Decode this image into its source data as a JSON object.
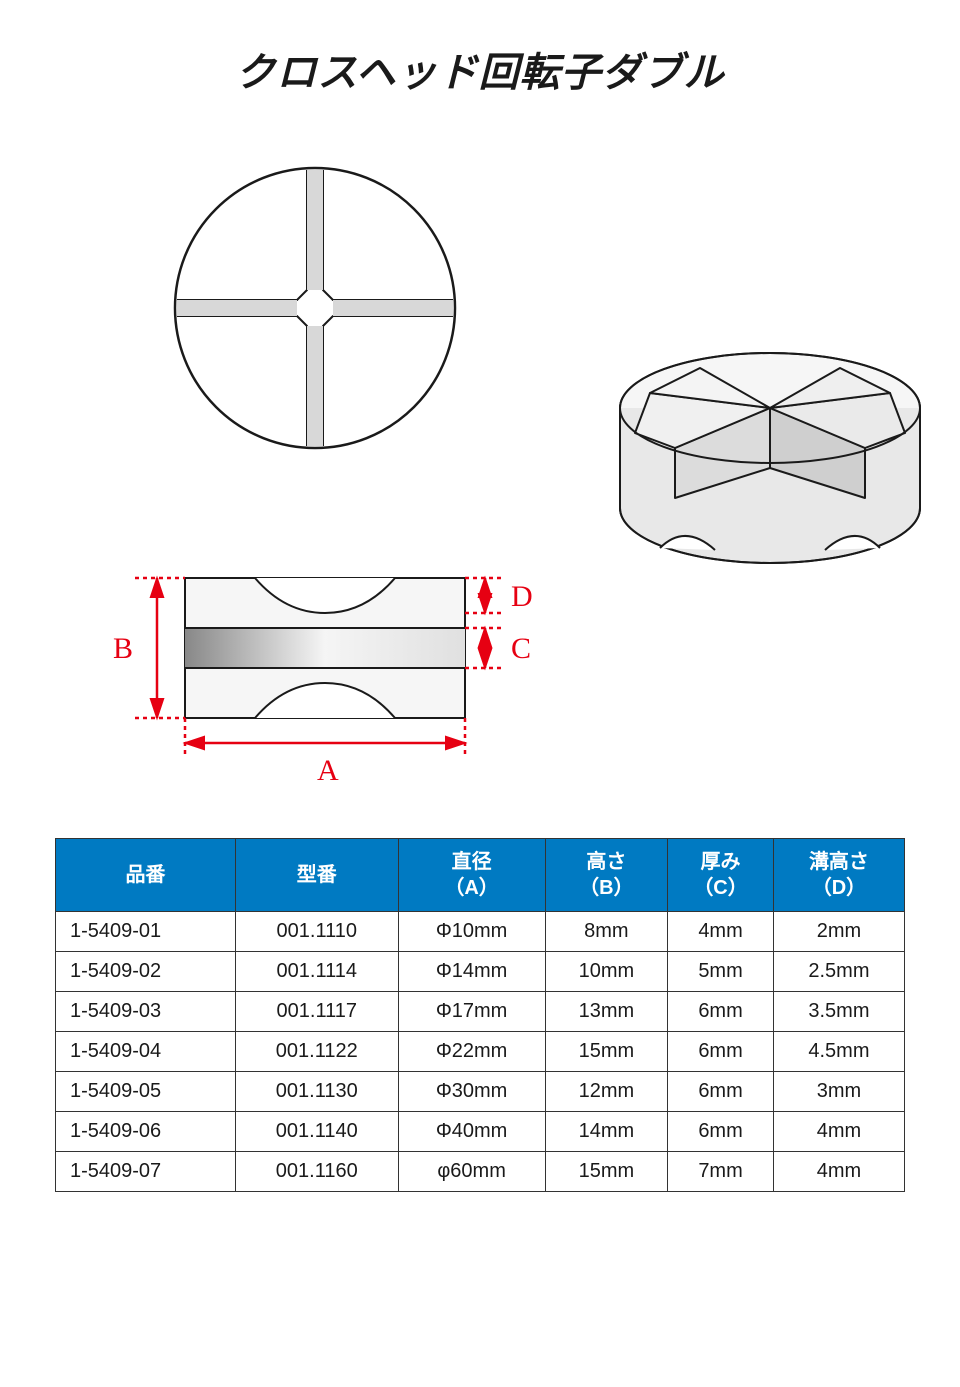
{
  "title": "クロスヘッド回転子ダブル",
  "diagram": {
    "labels": {
      "A": "A",
      "B": "B",
      "C": "C",
      "D": "D"
    },
    "stroke_color": "#1a1a1a",
    "dim_color": "#e60012",
    "fill_light": "#f2f2f2",
    "fill_mid": "#cccccc",
    "fill_dark": "#a8a8a8"
  },
  "table": {
    "header_bg": "#007ac2",
    "header_fg": "#ffffff",
    "border": "#333333",
    "columns": [
      {
        "label": "品番",
        "sub": ""
      },
      {
        "label": "型番",
        "sub": ""
      },
      {
        "label": "直径",
        "sub": "（A）"
      },
      {
        "label": "高さ",
        "sub": "（B）"
      },
      {
        "label": "厚み",
        "sub": "（C）"
      },
      {
        "label": "溝高さ",
        "sub": "（D）"
      }
    ],
    "rows": [
      [
        "1-5409-01",
        "001.1110",
        "Φ10mm",
        "8mm",
        "4mm",
        "2mm"
      ],
      [
        "1-5409-02",
        "001.1114",
        "Φ14mm",
        "10mm",
        "5mm",
        "2.5mm"
      ],
      [
        "1-5409-03",
        "001.1117",
        "Φ17mm",
        "13mm",
        "6mm",
        "3.5mm"
      ],
      [
        "1-5409-04",
        "001.1122",
        "Φ22mm",
        "15mm",
        "6mm",
        "4.5mm"
      ],
      [
        "1-5409-05",
        "001.1130",
        "Φ30mm",
        "12mm",
        "6mm",
        "3mm"
      ],
      [
        "1-5409-06",
        "001.1140",
        "Φ40mm",
        "14mm",
        "6mm",
        "4mm"
      ],
      [
        "1-5409-07",
        "001.1160",
        "φ60mm",
        "15mm",
        "7mm",
        "4mm"
      ]
    ]
  }
}
